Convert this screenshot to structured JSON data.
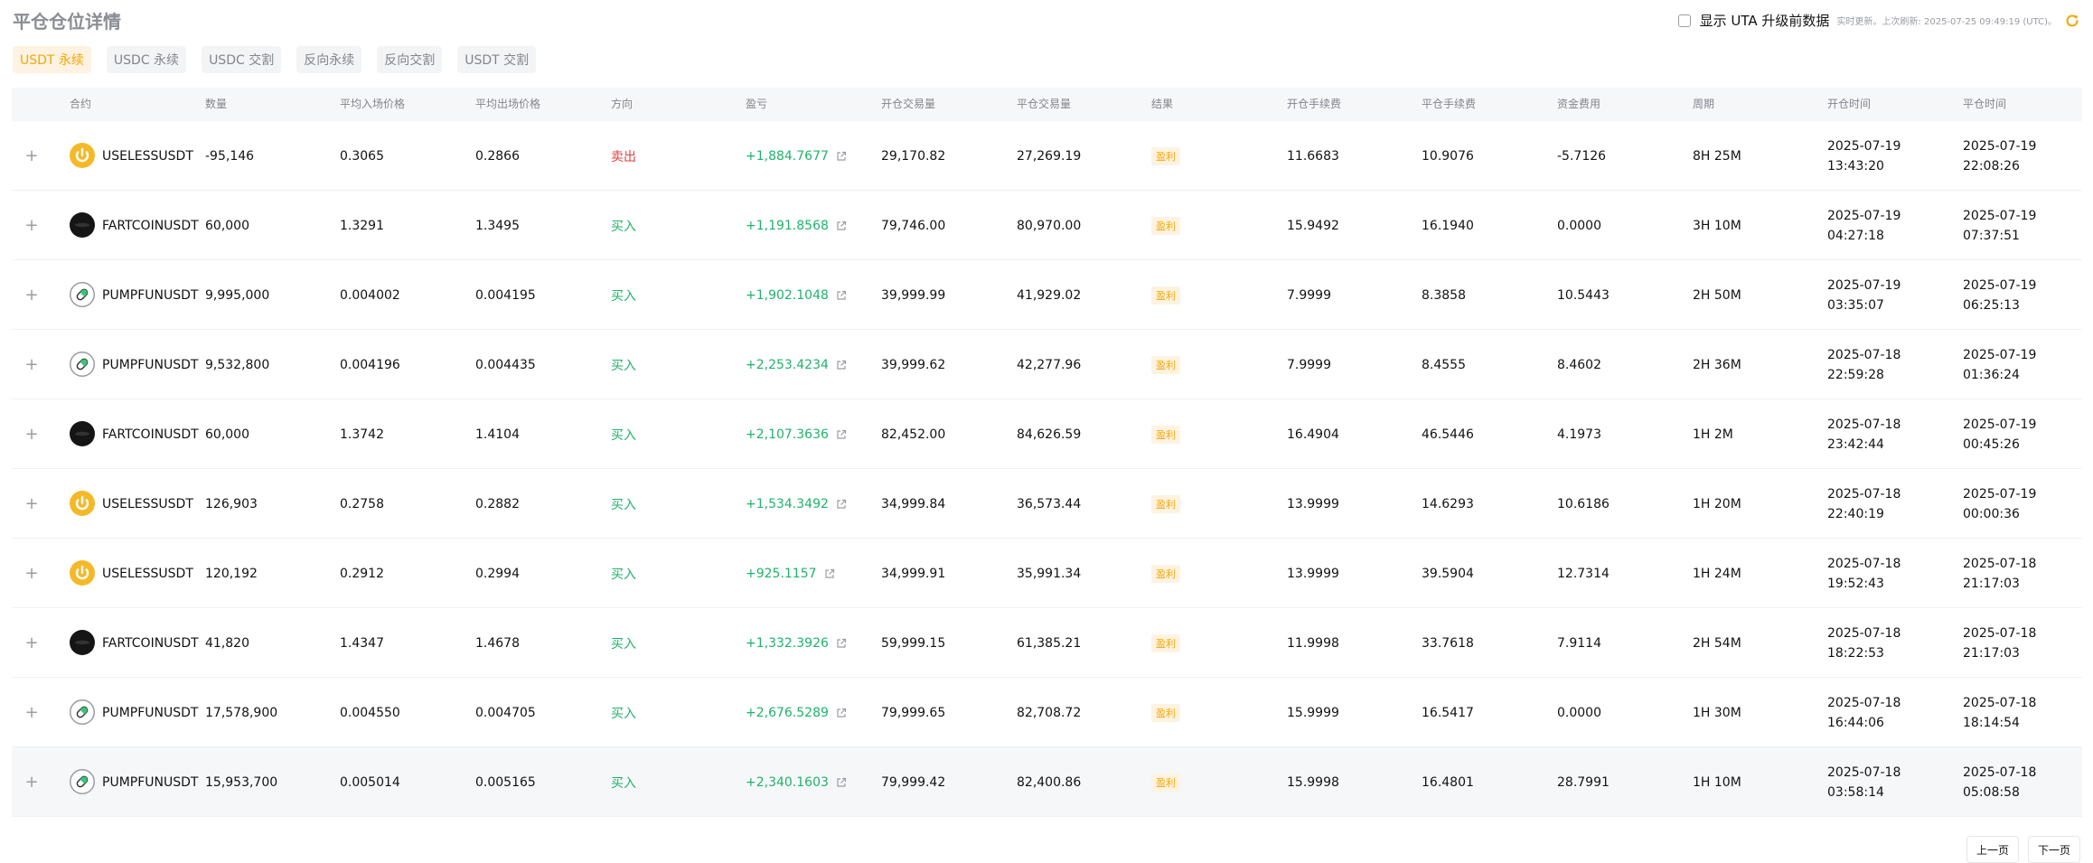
{
  "title": "平仓仓位详情",
  "uta": {
    "label": "显示 UTA 升级前数据",
    "note": "实时更新。上次刷新: 2025-07-25 09:49:19 (UTC)。"
  },
  "tabs": [
    "USDT 永续",
    "USDC 永续",
    "USDC 交割",
    "反向永续",
    "反向交割",
    "USDT 交割"
  ],
  "columns": [
    "合约",
    "数量",
    "平均入场价格",
    "平均出场价格",
    "方向",
    "盈亏",
    "开仓交易量",
    "平仓交易量",
    "结果",
    "开仓手续费",
    "平仓手续费",
    "资金费用",
    "周期",
    "开仓时间",
    "平仓时间"
  ],
  "rows": [
    {
      "icon": "useless",
      "symbol": "USELESSUSDT",
      "qty": "-95,146",
      "entry": "0.3065",
      "exit": "0.2866",
      "side": "卖出",
      "side_type": "sell",
      "pnl": "+1,884.7677",
      "open_vol": "29,170.82",
      "close_vol": "27,269.19",
      "result": "盈利",
      "open_fee": "11.6683",
      "close_fee": "10.9076",
      "funding": "-5.7126",
      "period": "8H 25M",
      "open_date": "2025-07-19",
      "open_time": "13:43:20",
      "close_date": "2025-07-19",
      "close_time": "22:08:26"
    },
    {
      "icon": "fartcoin",
      "symbol": "FARTCOINUSDT",
      "qty": "60,000",
      "entry": "1.3291",
      "exit": "1.3495",
      "side": "买入",
      "side_type": "buy",
      "pnl": "+1,191.8568",
      "open_vol": "79,746.00",
      "close_vol": "80,970.00",
      "result": "盈利",
      "open_fee": "15.9492",
      "close_fee": "16.1940",
      "funding": "0.0000",
      "period": "3H 10M",
      "open_date": "2025-07-19",
      "open_time": "04:27:18",
      "close_date": "2025-07-19",
      "close_time": "07:37:51"
    },
    {
      "icon": "pumpfun",
      "symbol": "PUMPFUNUSDT",
      "qty": "9,995,000",
      "entry": "0.004002",
      "exit": "0.004195",
      "side": "买入",
      "side_type": "buy",
      "pnl": "+1,902.1048",
      "open_vol": "39,999.99",
      "close_vol": "41,929.02",
      "result": "盈利",
      "open_fee": "7.9999",
      "close_fee": "8.3858",
      "funding": "10.5443",
      "period": "2H 50M",
      "open_date": "2025-07-19",
      "open_time": "03:35:07",
      "close_date": "2025-07-19",
      "close_time": "06:25:13"
    },
    {
      "icon": "pumpfun",
      "symbol": "PUMPFUNUSDT",
      "qty": "9,532,800",
      "entry": "0.004196",
      "exit": "0.004435",
      "side": "买入",
      "side_type": "buy",
      "pnl": "+2,253.4234",
      "open_vol": "39,999.62",
      "close_vol": "42,277.96",
      "result": "盈利",
      "open_fee": "7.9999",
      "close_fee": "8.4555",
      "funding": "8.4602",
      "period": "2H 36M",
      "open_date": "2025-07-18",
      "open_time": "22:59:28",
      "close_date": "2025-07-19",
      "close_time": "01:36:24"
    },
    {
      "icon": "fartcoin",
      "symbol": "FARTCOINUSDT",
      "qty": "60,000",
      "entry": "1.3742",
      "exit": "1.4104",
      "side": "买入",
      "side_type": "buy",
      "pnl": "+2,107.3636",
      "open_vol": "82,452.00",
      "close_vol": "84,626.59",
      "result": "盈利",
      "open_fee": "16.4904",
      "close_fee": "46.5446",
      "funding": "4.1973",
      "period": "1H 2M",
      "open_date": "2025-07-18",
      "open_time": "23:42:44",
      "close_date": "2025-07-19",
      "close_time": "00:45:26"
    },
    {
      "icon": "useless",
      "symbol": "USELESSUSDT",
      "qty": "126,903",
      "entry": "0.2758",
      "exit": "0.2882",
      "side": "买入",
      "side_type": "buy",
      "pnl": "+1,534.3492",
      "open_vol": "34,999.84",
      "close_vol": "36,573.44",
      "result": "盈利",
      "open_fee": "13.9999",
      "close_fee": "14.6293",
      "funding": "10.6186",
      "period": "1H 20M",
      "open_date": "2025-07-18",
      "open_time": "22:40:19",
      "close_date": "2025-07-19",
      "close_time": "00:00:36"
    },
    {
      "icon": "useless",
      "symbol": "USELESSUSDT",
      "qty": "120,192",
      "entry": "0.2912",
      "exit": "0.2994",
      "side": "买入",
      "side_type": "buy",
      "pnl": "+925.1157",
      "open_vol": "34,999.91",
      "close_vol": "35,991.34",
      "result": "盈利",
      "open_fee": "13.9999",
      "close_fee": "39.5904",
      "funding": "12.7314",
      "period": "1H 24M",
      "open_date": "2025-07-18",
      "open_time": "19:52:43",
      "close_date": "2025-07-18",
      "close_time": "21:17:03"
    },
    {
      "icon": "fartcoin",
      "symbol": "FARTCOINUSDT",
      "qty": "41,820",
      "entry": "1.4347",
      "exit": "1.4678",
      "side": "买入",
      "side_type": "buy",
      "pnl": "+1,332.3926",
      "open_vol": "59,999.15",
      "close_vol": "61,385.21",
      "result": "盈利",
      "open_fee": "11.9998",
      "close_fee": "33.7618",
      "funding": "7.9114",
      "period": "2H 54M",
      "open_date": "2025-07-18",
      "open_time": "18:22:53",
      "close_date": "2025-07-18",
      "close_time": "21:17:03"
    },
    {
      "icon": "pumpfun",
      "symbol": "PUMPFUNUSDT",
      "qty": "17,578,900",
      "entry": "0.004550",
      "exit": "0.004705",
      "side": "买入",
      "side_type": "buy",
      "pnl": "+2,676.5289",
      "open_vol": "79,999.65",
      "close_vol": "82,708.72",
      "result": "盈利",
      "open_fee": "15.9999",
      "close_fee": "16.5417",
      "funding": "0.0000",
      "period": "1H 30M",
      "open_date": "2025-07-18",
      "open_time": "16:44:06",
      "close_date": "2025-07-18",
      "close_time": "18:14:54"
    },
    {
      "icon": "pumpfun",
      "symbol": "PUMPFUNUSDT",
      "qty": "15,953,700",
      "entry": "0.005014",
      "exit": "0.005165",
      "side": "买入",
      "side_type": "buy",
      "pnl": "+2,340.1603",
      "open_vol": "79,999.42",
      "close_vol": "82,400.86",
      "result": "盈利",
      "open_fee": "15.9998",
      "close_fee": "16.4801",
      "funding": "28.7991",
      "period": "1H 10M",
      "open_date": "2025-07-18",
      "open_time": "03:58:14",
      "close_date": "2025-07-18",
      "close_time": "05:08:58"
    }
  ],
  "pager": {
    "prev": "上一页",
    "next": "下一页"
  },
  "colors": {
    "accent": "#f7a600",
    "buy": "#20b26c",
    "sell": "#e04040",
    "muted": "#81858c"
  }
}
